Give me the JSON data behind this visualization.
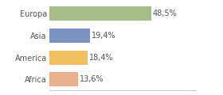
{
  "categories": [
    "Europa",
    "Asia",
    "America",
    "Africa"
  ],
  "values": [
    48.5,
    19.4,
    18.4,
    13.6
  ],
  "labels": [
    "48,5%",
    "19,4%",
    "18,4%",
    "13,6%"
  ],
  "colors": [
    "#a8bc8a",
    "#7b93c0",
    "#f0c060",
    "#e8b090"
  ],
  "xlim": [
    0,
    70
  ],
  "background_color": "#ffffff",
  "label_fontsize": 7.0,
  "tick_fontsize": 7.0
}
